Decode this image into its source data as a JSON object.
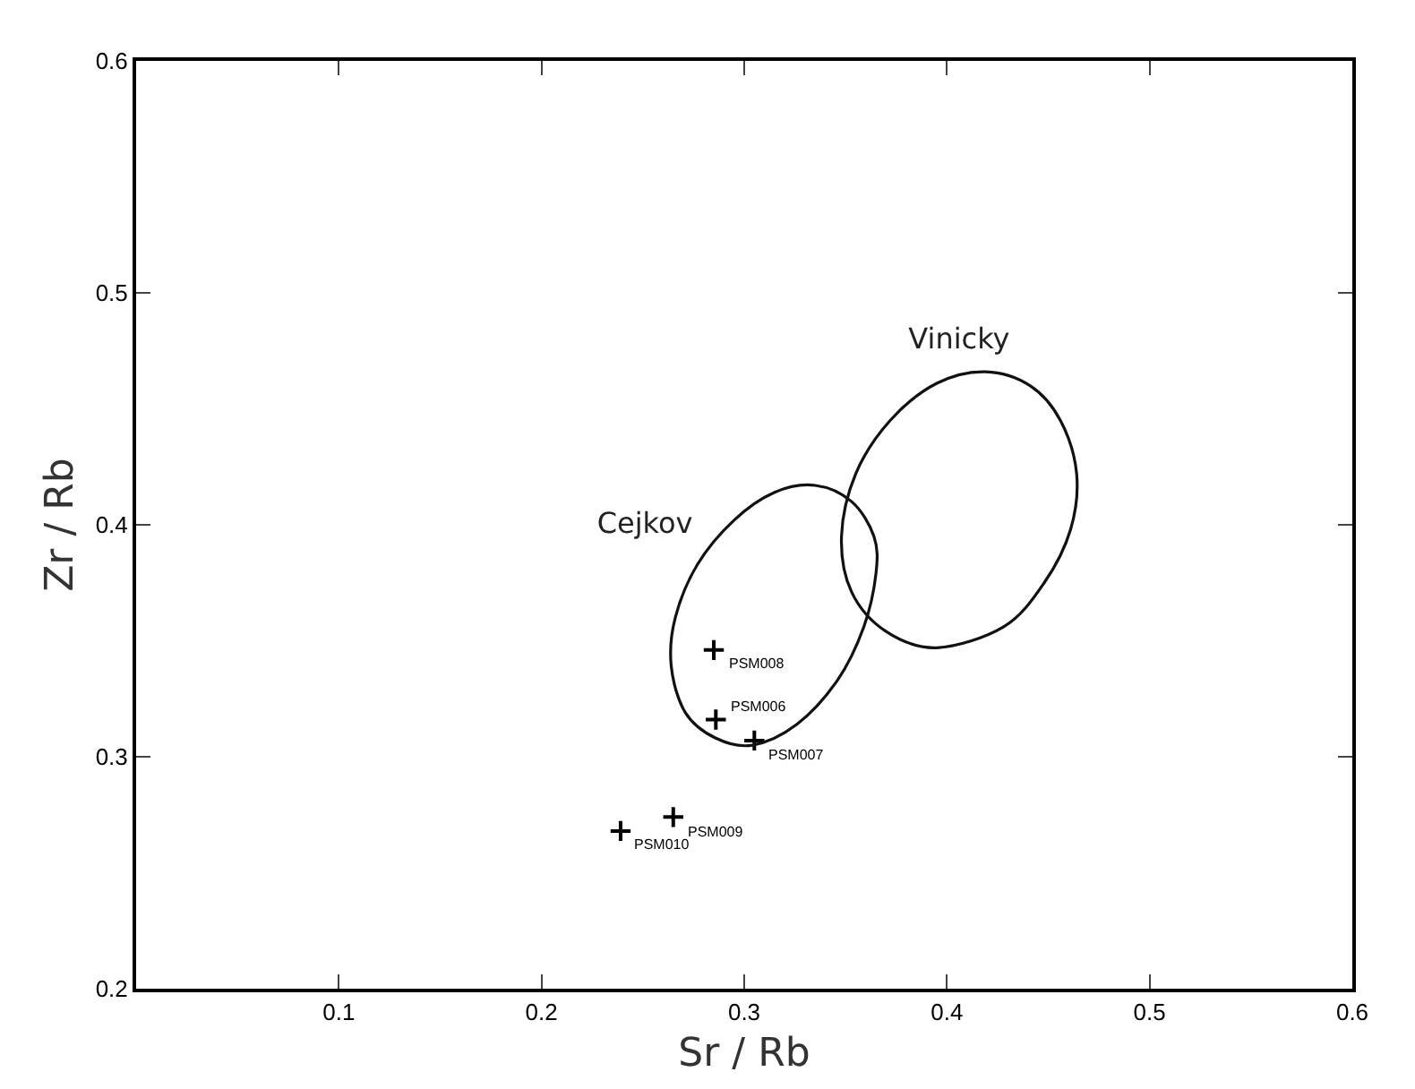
{
  "chart_data": {
    "type": "scatter",
    "xlabel": "Sr / Rb",
    "ylabel": "Zr / Rb",
    "xlim": [
      0,
      0.6
    ],
    "xticks": [
      0.1,
      0.2,
      0.3,
      0.4,
      0.5,
      0.6
    ],
    "ylim": [
      0.2,
      0.6
    ],
    "yticks": [
      0.2,
      0.3,
      0.4,
      0.5,
      0.6
    ],
    "grid": false,
    "marker": "cross",
    "series": [
      {
        "color": "#000000",
        "x": [
          0.285,
          0.286,
          0.305,
          0.265,
          0.239
        ],
        "values": [
          0.346,
          0.316,
          0.307,
          0.274,
          0.268
        ]
      }
    ],
    "annotations": [
      {
        "text": "PSM008",
        "x": 0.285,
        "y": 0.346
      },
      {
        "text": "PSM006",
        "x": 0.286,
        "y": 0.316
      },
      {
        "text": "PSM007",
        "x": 0.305,
        "y": 0.307
      },
      {
        "text": "PSM009",
        "x": 0.265,
        "y": 0.274
      },
      {
        "text": "PSM010",
        "x": 0.239,
        "y": 0.268
      },
      "Cejkov",
      "Vinicky"
    ]
  }
}
